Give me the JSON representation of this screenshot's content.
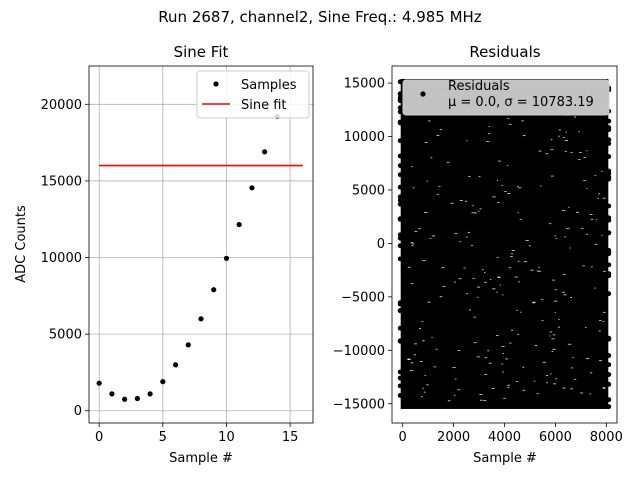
{
  "figure": {
    "suptitle": "Run 2687, channel2, Sine Freq.: 4.985 MHz"
  },
  "chart_data": [
    {
      "type": "scatter",
      "title": "Sine Fit",
      "xlabel": "Sample #",
      "ylabel": "ADC Counts",
      "xlim": [
        -0.8,
        16.8
      ],
      "ylim": [
        -800,
        22500
      ],
      "xticks": [
        0,
        5,
        10,
        15
      ],
      "xtick_labels": [
        "0",
        "5",
        "10",
        "15"
      ],
      "yticks": [
        0,
        5000,
        10000,
        15000,
        20000
      ],
      "ytick_labels": [
        "0",
        "5000",
        "10000",
        "15000",
        "20000"
      ],
      "grid": true,
      "legend_position": "top-right",
      "series": [
        {
          "name": "Samples",
          "kind": "points",
          "color": "#000000",
          "x": [
            0,
            1,
            2,
            3,
            4,
            5,
            6,
            7,
            8,
            9,
            10,
            11,
            12,
            13,
            14
          ],
          "y": [
            1800,
            1100,
            750,
            800,
            1100,
            1900,
            3000,
            4300,
            6000,
            7900,
            9950,
            12150,
            14550,
            16900,
            19200
          ]
        },
        {
          "name": "Sine fit",
          "kind": "line",
          "color": "#ff0000",
          "x": [
            0,
            16
          ],
          "y": [
            16000,
            16000
          ]
        }
      ]
    },
    {
      "type": "scatter",
      "title": "Residuals",
      "xlabel": "Sample #",
      "ylabel": "",
      "xlim": [
        -420,
        8420
      ],
      "ylim": [
        -16800,
        16600
      ],
      "xticks": [
        0,
        2000,
        4000,
        6000,
        8000
      ],
      "xtick_labels": [
        "0",
        "2000",
        "4000",
        "6000",
        "8000"
      ],
      "yticks": [
        -15000,
        -10000,
        -5000,
        0,
        5000,
        10000,
        15000
      ],
      "ytick_labels": [
        "−15000",
        "−10000",
        "−5000",
        "0",
        "5000",
        "10000",
        "15000"
      ],
      "grid": false,
      "legend_position": "top",
      "legend_lines": [
        "Residuals",
        "μ = 0.0, σ = 10783.19"
      ],
      "series": [
        {
          "name": "Residuals",
          "kind": "dense-points",
          "color": "#000000",
          "x_range": [
            0,
            8000
          ],
          "y_range": [
            -15300,
            15200
          ],
          "n_points": 8000
        }
      ]
    }
  ]
}
